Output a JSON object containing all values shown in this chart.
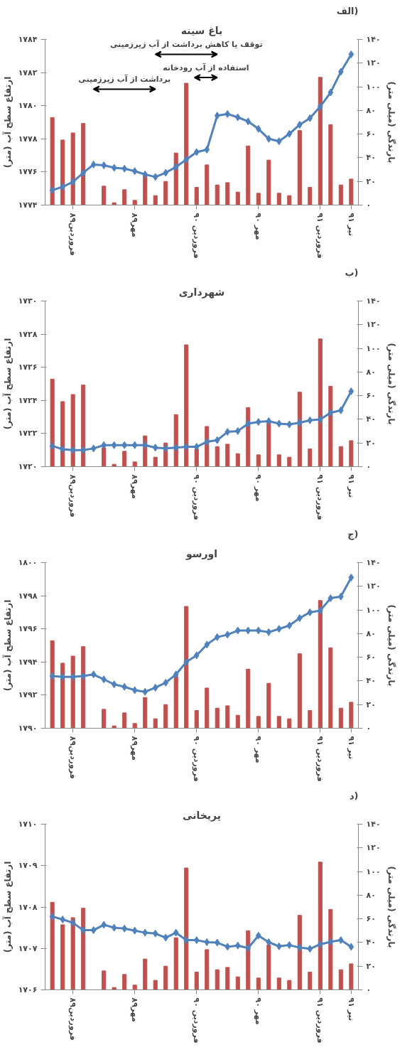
{
  "chart_data": [
    {
      "type": "bar",
      "title": "باغ سینه",
      "annotations": [
        "الف)",
        "توقف یا کاهش برداشت از آب زیرزمینی",
        "استفاده از آب رودخانه",
        "برداشت از آب زیرزمینی"
      ],
      "ylabel": "ارتفاع سطح آب (متر)",
      "y2label": "بارندگی (میلی متر)",
      "categories": [
        null,
        null,
        "فروردین۸۹",
        null,
        null,
        null,
        null,
        null,
        "مهر۸۹",
        null,
        null,
        null,
        null,
        null,
        "فروردین ۹۰",
        null,
        null,
        null,
        null,
        null,
        "مهر ۹۰",
        null,
        null,
        null,
        null,
        null,
        "فروردین ۹۱",
        null,
        null,
        "تیر ۹۱"
      ],
      "ylim": [
        1774,
        1784
      ],
      "yticks": [
        {
          "value": 1774,
          "label": "۱۷۷۴"
        },
        {
          "value": 1776,
          "label": "۱۷۷۶"
        },
        {
          "value": 1778,
          "label": "۱۷۷۸"
        },
        {
          "value": 1780,
          "label": "۱۷۸۰"
        },
        {
          "value": 1782,
          "label": "۱۷۸۲"
        },
        {
          "value": 1784,
          "label": "۱۷۸۴"
        }
      ],
      "y2lim": [
        0,
        140
      ],
      "y2ticks": [
        {
          "value": 0,
          "label": "۰"
        },
        {
          "value": 20,
          "label": "۲۰"
        },
        {
          "value": 40,
          "label": "۴۰"
        },
        {
          "value": 60,
          "label": "۶۰"
        },
        {
          "value": 80,
          "label": "۸۰"
        },
        {
          "value": 100,
          "label": "۱۰۰"
        },
        {
          "value": 120,
          "label": "۱۲۰"
        },
        {
          "value": 140,
          "label": "۱۴۰"
        }
      ],
      "marker": "diamond",
      "series": [
        {
          "axis": "y2",
          "color": "#c0504d",
          "values": [
            74,
            55,
            61,
            69,
            0,
            16,
            2,
            13,
            4,
            26,
            8,
            20,
            44,
            103,
            15,
            34,
            17,
            19,
            11,
            50,
            10,
            38,
            10,
            8,
            63,
            15,
            108,
            68,
            17,
            22
          ]
        },
        {
          "type": "line",
          "color": "#4f81bd",
          "values": [
            1774.9,
            1775.1,
            1775.4,
            1775.95,
            1776.45,
            1776.4,
            1776.25,
            1776.2,
            1776.05,
            1775.85,
            1775.7,
            1775.95,
            1776.3,
            1776.75,
            1777.2,
            1777.35,
            1779.4,
            1779.5,
            1779.3,
            1779.05,
            1778.6,
            1778.0,
            1777.85,
            1778.3,
            1778.85,
            1779.25,
            1779.95,
            1780.8,
            1782.05,
            1783.1
          ]
        }
      ]
    },
    {
      "type": "bar",
      "title": "شهرداری",
      "annotations": [
        "ب)"
      ],
      "ylabel": "ارتفاع سطح آب (متر)",
      "y2label": "بارندگی (میلی متر)",
      "categories": [
        null,
        null,
        "فروردین۸۹",
        null,
        null,
        null,
        null,
        null,
        "مهر۸۹",
        null,
        null,
        null,
        null,
        null,
        "فروردین ۹۰",
        null,
        null,
        null,
        null,
        null,
        "مهر ۹۰",
        null,
        null,
        null,
        null,
        null,
        "فروردین ۹۱",
        null,
        null,
        "تیر ۹۱"
      ],
      "ylim": [
        1720,
        1730
      ],
      "yticks": [
        {
          "value": 1720,
          "label": "۱۷۲۰"
        },
        {
          "value": 1722,
          "label": "۱۷۲۲"
        },
        {
          "value": 1724,
          "label": "۱۷۲۴"
        },
        {
          "value": 1726,
          "label": "۱۷۲۶"
        },
        {
          "value": 1728,
          "label": "۱۷۲۸"
        },
        {
          "value": 1730,
          "label": "۱۷۳۰"
        }
      ],
      "y2lim": [
        0,
        140
      ],
      "y2ticks": [
        {
          "value": 0,
          "label": "۰"
        },
        {
          "value": 20,
          "label": "۲۰"
        },
        {
          "value": 40,
          "label": "۴۰"
        },
        {
          "value": 60,
          "label": "۶۰"
        },
        {
          "value": 80,
          "label": "۸۰"
        },
        {
          "value": 100,
          "label": "۱۰۰"
        },
        {
          "value": 120,
          "label": "۱۲۰"
        },
        {
          "value": 140,
          "label": "۱۴۰"
        }
      ],
      "marker": "diamond",
      "series": [
        {
          "axis": "y2",
          "color": "#c0504d",
          "values": [
            74,
            55,
            61,
            69,
            0,
            16,
            2,
            13,
            4,
            26,
            8,
            20,
            44,
            103,
            15,
            34,
            17,
            19,
            11,
            50,
            10,
            38,
            10,
            8,
            63,
            15,
            108,
            68,
            17,
            22
          ]
        },
        {
          "type": "line",
          "color": "#4f81bd",
          "values": [
            1721.25,
            1721.05,
            1721.0,
            1721.0,
            1721.1,
            1721.3,
            1721.3,
            1721.3,
            1721.3,
            1721.3,
            1721.15,
            1721.1,
            1721.15,
            1721.2,
            1721.2,
            1721.5,
            1721.6,
            1722.1,
            1722.15,
            1722.6,
            1722.7,
            1722.75,
            1722.6,
            1722.55,
            1722.65,
            1722.8,
            1722.85,
            1723.25,
            1723.4,
            1724.55
          ]
        }
      ]
    },
    {
      "type": "bar",
      "title": "اورسو",
      "annotations": [
        "ج)"
      ],
      "ylabel": "ارتفاع سطح آب (متر)",
      "y2label": "بارندگی (میلی متر)",
      "categories": [
        null,
        null,
        "فروردین۸۹",
        null,
        null,
        null,
        null,
        null,
        "مهر۸۹",
        null,
        null,
        null,
        null,
        null,
        "فروردین ۹۰",
        null,
        null,
        null,
        null,
        null,
        "مهر ۹۰",
        null,
        null,
        null,
        null,
        null,
        "فروردین ۹۱",
        null,
        null,
        "تیر ۹۱"
      ],
      "ylim": [
        1790,
        1800
      ],
      "yticks": [
        {
          "value": 1790,
          "label": "۱۷۹۰"
        },
        {
          "value": 1792,
          "label": "۱۷۹۲"
        },
        {
          "value": 1794,
          "label": "۱۷۹۴"
        },
        {
          "value": 1796,
          "label": "۱۷۹۶"
        },
        {
          "value": 1798,
          "label": "۱۷۹۸"
        },
        {
          "value": 1800,
          "label": "۱۸۰۰"
        }
      ],
      "y2lim": [
        0,
        140
      ],
      "y2ticks": [
        {
          "value": 0,
          "label": "۰"
        },
        {
          "value": 20,
          "label": "۲۰"
        },
        {
          "value": 40,
          "label": "۴۰"
        },
        {
          "value": 60,
          "label": "۶۰"
        },
        {
          "value": 80,
          "label": "۸۰"
        },
        {
          "value": 100,
          "label": "۱۰۰"
        },
        {
          "value": 120,
          "label": "۱۲۰"
        },
        {
          "value": 140,
          "label": "۱۴۰"
        }
      ],
      "marker": "diamond",
      "series": [
        {
          "axis": "y2",
          "color": "#c0504d",
          "values": [
            74,
            55,
            61,
            69,
            0,
            16,
            2,
            13,
            4,
            26,
            8,
            20,
            44,
            103,
            15,
            34,
            17,
            19,
            11,
            50,
            10,
            38,
            10,
            8,
            63,
            15,
            108,
            68,
            17,
            22
          ]
        },
        {
          "type": "line",
          "color": "#4f81bd",
          "values": [
            1793.15,
            1793.1,
            1793.1,
            1793.15,
            1793.25,
            1792.95,
            1792.65,
            1792.5,
            1792.3,
            1792.2,
            1792.45,
            1792.75,
            1793.25,
            1794.0,
            1794.4,
            1795.05,
            1795.5,
            1795.65,
            1795.9,
            1795.9,
            1795.9,
            1795.8,
            1796.0,
            1796.2,
            1796.65,
            1797.0,
            1797.1,
            1797.85,
            1797.95,
            1799.1
          ]
        }
      ]
    },
    {
      "type": "bar",
      "title": "پریخانی",
      "annotations": [
        "د)"
      ],
      "ylabel": "ارتفاع سطح آب (متر)",
      "y2label": "بارندگی (میلی متر)",
      "categories": [
        null,
        null,
        "فروردین۸۹",
        null,
        null,
        null,
        null,
        null,
        "مهر۸۹",
        null,
        null,
        null,
        null,
        null,
        "فروردین ۹۰",
        null,
        null,
        null,
        null,
        null,
        "مهر ۹۰",
        null,
        null,
        null,
        null,
        null,
        "فروردین ۹۱",
        null,
        null,
        "تیر ۹۱"
      ],
      "ylim": [
        1706,
        1710
      ],
      "yticks": [
        {
          "value": 1706,
          "label": "۱۷۰۶"
        },
        {
          "value": 1707,
          "label": "۱۷۰۷"
        },
        {
          "value": 1708,
          "label": "۱۷۰۸"
        },
        {
          "value": 1709,
          "label": "۱۷۰۹"
        },
        {
          "value": 1710,
          "label": "۱۷۱۰"
        }
      ],
      "y2lim": [
        0,
        140
      ],
      "y2ticks": [
        {
          "value": 0,
          "label": "۰"
        },
        {
          "value": 20,
          "label": "۲۰"
        },
        {
          "value": 40,
          "label": "۴۰"
        },
        {
          "value": 60,
          "label": "۶۰"
        },
        {
          "value": 80,
          "label": "۸۰"
        },
        {
          "value": 100,
          "label": "۱۰۰"
        },
        {
          "value": 120,
          "label": "۱۲۰"
        },
        {
          "value": 140,
          "label": "۱۴۰"
        }
      ],
      "marker": "diamond",
      "series": [
        {
          "axis": "y2",
          "color": "#c0504d",
          "values": [
            74,
            55,
            61,
            69,
            0,
            16,
            2,
            13,
            4,
            26,
            8,
            20,
            44,
            103,
            15,
            34,
            17,
            19,
            11,
            50,
            10,
            38,
            10,
            8,
            63,
            15,
            108,
            68,
            17,
            22
          ]
        },
        {
          "type": "line",
          "color": "#4f81bd",
          "values": [
            1707.77,
            1707.7,
            1707.62,
            1707.44,
            1707.44,
            1707.57,
            1707.5,
            1707.48,
            1707.43,
            1707.38,
            1707.36,
            1707.26,
            1707.38,
            1707.2,
            1707.2,
            1707.15,
            1707.14,
            1707.04,
            1707.07,
            1707.01,
            1707.31,
            1707.15,
            1707.05,
            1707.08,
            1707.02,
            1706.99,
            1707.1,
            1707.16,
            1707.2,
            1707.04
          ]
        }
      ]
    }
  ]
}
